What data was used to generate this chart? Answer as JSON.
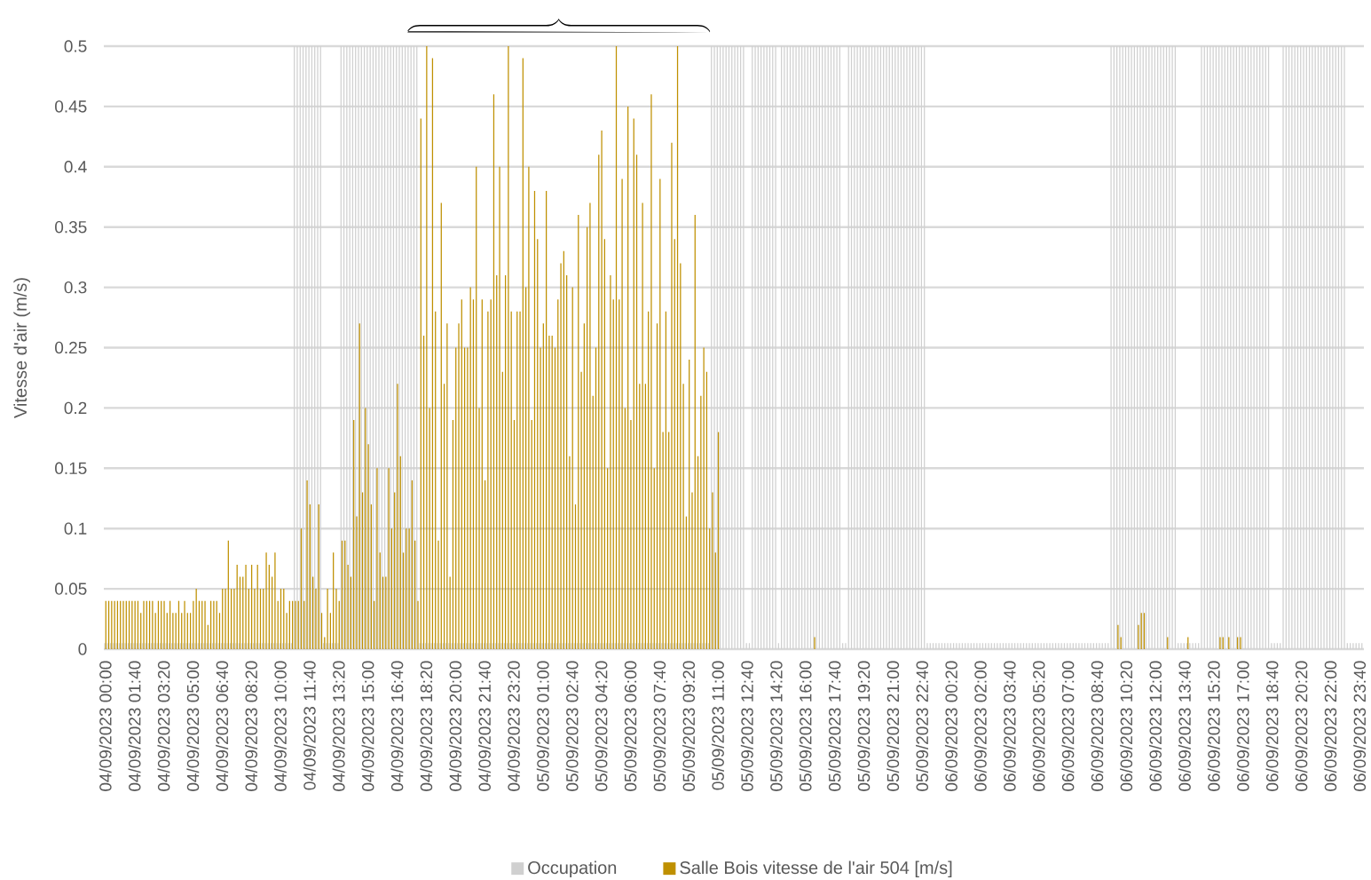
{
  "chart_data": {
    "type": "bar",
    "ylabel": "Vitesse d'air (m/s)",
    "categories": [
      "04/09/2023 00:00",
      null,
      null,
      null,
      null,
      null,
      null,
      null,
      null,
      null,
      "04/09/2023 01:40",
      null,
      null,
      null,
      null,
      null,
      null,
      null,
      null,
      null,
      "04/09/2023 03:20",
      null,
      null,
      null,
      null,
      null,
      null,
      null,
      null,
      null,
      "04/09/2023 05:00",
      null,
      null,
      null,
      null,
      null,
      null,
      null,
      null,
      null,
      "04/09/2023 06:40",
      null,
      null,
      null,
      null,
      null,
      null,
      null,
      null,
      null,
      "04/09/2023 08:20",
      null,
      null,
      null,
      null,
      null,
      null,
      null,
      null,
      null,
      "04/09/2023 10:00",
      null,
      null,
      null,
      null,
      null,
      null,
      null,
      null,
      null,
      "04/09/2023 11:40",
      null,
      null,
      null,
      null,
      null,
      null,
      null,
      null,
      null,
      "04/09/2023 13:20",
      null,
      null,
      null,
      null,
      null,
      null,
      null,
      null,
      null,
      "04/09/2023 15:00",
      null,
      null,
      null,
      null,
      null,
      null,
      null,
      null,
      null,
      "04/09/2023 16:40",
      null,
      null,
      null,
      null,
      null,
      null,
      null,
      null,
      null,
      "04/09/2023 18:20",
      null,
      null,
      null,
      null,
      null,
      null,
      null,
      null,
      null,
      "04/09/2023 20:00",
      null,
      null,
      null,
      null,
      null,
      null,
      null,
      null,
      null,
      "04/09/2023 21:40",
      null,
      null,
      null,
      null,
      null,
      null,
      null,
      null,
      null,
      "04/09/2023 23:20",
      null,
      null,
      null,
      null,
      null,
      null,
      null,
      null,
      null,
      "05/09/2023 01:00",
      null,
      null,
      null,
      null,
      null,
      null,
      null,
      null,
      null,
      "05/09/2023 02:40",
      null,
      null,
      null,
      null,
      null,
      null,
      null,
      null,
      null,
      "05/09/2023 04:20",
      null,
      null,
      null,
      null,
      null,
      null,
      null,
      null,
      null,
      "05/09/2023 06:00",
      null,
      null,
      null,
      null,
      null,
      null,
      null,
      null,
      null,
      "05/09/2023 07:40",
      null,
      null,
      null,
      null,
      null,
      null,
      null,
      null,
      null,
      "05/09/2023 09:20",
      null,
      null,
      null,
      null,
      null,
      null,
      null,
      null,
      null,
      "05/09/2023 11:00",
      null,
      null,
      null,
      null,
      null,
      null,
      null,
      null,
      null,
      "05/09/2023 12:40",
      null,
      null,
      null,
      null,
      null,
      null,
      null,
      null,
      null,
      "05/09/2023 14:20",
      null,
      null,
      null,
      null,
      null,
      null,
      null,
      null,
      null,
      "05/09/2023 16:00",
      null,
      null,
      null,
      null,
      null,
      null,
      null,
      null,
      null,
      "05/09/2023 17:40",
      null,
      null,
      null,
      null,
      null,
      null,
      null,
      null,
      null,
      "05/09/2023 19:20",
      null,
      null,
      null,
      null,
      null,
      null,
      null,
      null,
      null,
      "05/09/2023 21:00",
      null,
      null,
      null,
      null,
      null,
      null,
      null,
      null,
      null,
      "05/09/2023 22:40",
      null,
      null,
      null,
      null,
      null,
      null,
      null,
      null,
      null,
      "06/09/2023 00:20",
      null,
      null,
      null,
      null,
      null,
      null,
      null,
      null,
      null,
      "06/09/2023 02:00",
      null,
      null,
      null,
      null,
      null,
      null,
      null,
      null,
      null,
      "06/09/2023 03:40",
      null,
      null,
      null,
      null,
      null,
      null,
      null,
      null,
      null,
      "06/09/2023 05:20",
      null,
      null,
      null,
      null,
      null,
      null,
      null,
      null,
      null,
      "06/09/2023 07:00",
      null,
      null,
      null,
      null,
      null,
      null,
      null,
      null,
      null,
      "06/09/2023 08:40",
      null,
      null,
      null,
      null,
      null,
      null,
      null,
      null,
      null,
      "06/09/2023 10:20",
      null,
      null,
      null,
      null,
      null,
      null,
      null,
      null,
      null,
      "06/09/2023 12:00",
      null,
      null,
      null,
      null,
      null,
      null,
      null,
      null,
      null,
      "06/09/2023 13:40",
      null,
      null,
      null,
      null,
      null,
      null,
      null,
      null,
      null,
      "06/09/2023 15:20",
      null,
      null,
      null,
      null,
      null,
      null,
      null,
      null,
      null,
      "06/09/2023 17:00",
      null,
      null,
      null,
      null,
      null,
      null,
      null,
      null,
      null,
      "06/09/2023 18:40",
      null,
      null,
      null,
      null,
      null,
      null,
      null,
      null,
      null,
      "06/09/2023 20:20",
      null,
      null,
      null,
      null,
      null,
      null,
      null,
      null,
      null,
      "06/09/2023 22:00",
      null,
      null,
      null,
      null,
      null,
      null,
      null,
      null,
      null,
      "06/09/2023 23:40",
      null
    ],
    "series": [
      {
        "name": "Occupation",
        "color": "#d0d0d0",
        "values": [
          0.005,
          0.005,
          0.005,
          0.005,
          0.005,
          0.005,
          0.005,
          0.005,
          0.005,
          0.005,
          0.005,
          0.005,
          0.005,
          0.005,
          0.005,
          0.005,
          0.005,
          0.005,
          0.005,
          0.005,
          0.005,
          0.005,
          0.005,
          0.005,
          0.005,
          0.005,
          0.005,
          0.005,
          0.005,
          0.005,
          0.005,
          0.005,
          0.005,
          0.005,
          0.005,
          0.005,
          0.005,
          0.005,
          0.005,
          0.005,
          0.005,
          0.005,
          0.005,
          0.005,
          0.005,
          0.005,
          0.005,
          0.005,
          0.005,
          0.005,
          0.005,
          0.005,
          0.005,
          0.005,
          0.005,
          0.005,
          0.005,
          0.005,
          0.005,
          0.005,
          0.005,
          0.005,
          0.005,
          0.005,
          0.005,
          0.5,
          0.5,
          0.5,
          0.5,
          0.5,
          0.5,
          0.5,
          0.5,
          0.5,
          0.5,
          0.005,
          0.005,
          0.005,
          0.005,
          0.005,
          0.005,
          0.5,
          0.5,
          0.5,
          0.5,
          0.5,
          0.5,
          0.5,
          0.5,
          0.5,
          0.5,
          0.5,
          0.5,
          0.5,
          0.5,
          0.5,
          0.5,
          0.5,
          0.5,
          0.5,
          0.5,
          0.5,
          0.5,
          0.5,
          0.5,
          0.5,
          0.5,
          0.5,
          0.005,
          0.005,
          0.005,
          0.005,
          0.005,
          0.005,
          0.005,
          0.005,
          0.005,
          0.005,
          0.005,
          0.005,
          0.005,
          0.005,
          0.005,
          0.005,
          0.005,
          0.005,
          0.005,
          0.005,
          0.005,
          0.005,
          0.005,
          0.005,
          0.005,
          0.005,
          0.005,
          0.005,
          0.005,
          0.005,
          0.005,
          0.005,
          0.005,
          0.005,
          0.005,
          0.005,
          0.005,
          0.005,
          0.005,
          0.005,
          0.005,
          0.005,
          0.005,
          0.005,
          0.005,
          0.005,
          0.005,
          0.005,
          0.005,
          0.005,
          0.005,
          0.005,
          0.005,
          0.005,
          0.005,
          0.005,
          0.005,
          0.005,
          0.005,
          0.005,
          0.005,
          0.005,
          0.005,
          0.005,
          0.005,
          0.005,
          0.005,
          0.005,
          0.005,
          0.005,
          0.005,
          0.005,
          0.005,
          0.005,
          0.005,
          0.005,
          0.005,
          0.005,
          0.005,
          0.005,
          0.005,
          0.005,
          0.005,
          0.005,
          0.005,
          0.005,
          0.005,
          0.005,
          0.005,
          0.005,
          0.005,
          0.005,
          0.005,
          0.005,
          0.005,
          0.005,
          0.005,
          0.005,
          0.005,
          0.005,
          0.5,
          0.5,
          0.5,
          0.5,
          0.5,
          0.5,
          0.5,
          0.5,
          0.5,
          0.5,
          0.5,
          0.5,
          0.005,
          0.005,
          0.5,
          0.5,
          0.5,
          0.5,
          0.5,
          0.5,
          0.5,
          0.5,
          0.5,
          0.005,
          0.5,
          0.5,
          0.5,
          0.5,
          0.5,
          0.5,
          0.5,
          0.5,
          0.5,
          0.5,
          0.5,
          0.5,
          0.5,
          0.5,
          0.5,
          0.5,
          0.5,
          0.5,
          0.5,
          0.5,
          0.5,
          0.005,
          0.005,
          0.5,
          0.5,
          0.5,
          0.5,
          0.5,
          0.5,
          0.5,
          0.5,
          0.5,
          0.5,
          0.5,
          0.5,
          0.5,
          0.5,
          0.5,
          0.5,
          0.5,
          0.5,
          0.5,
          0.5,
          0.5,
          0.5,
          0.5,
          0.5,
          0.5,
          0.5,
          0.5,
          0.005,
          0.005,
          0.005,
          0.005,
          0.005,
          0.005,
          0.005,
          0.005,
          0.005,
          0.005,
          0.005,
          0.005,
          0.005,
          0.005,
          0.005,
          0.005,
          0.005,
          0.005,
          0.005,
          0.005,
          0.005,
          0.005,
          0.005,
          0.005,
          0.005,
          0.005,
          0.005,
          0.005,
          0.005,
          0.005,
          0.005,
          0.005,
          0.005,
          0.005,
          0.005,
          0.005,
          0.005,
          0.005,
          0.005,
          0.005,
          0.005,
          0.005,
          0.005,
          0.005,
          0.005,
          0.005,
          0.005,
          0.005,
          0.005,
          0.005,
          0.005,
          0.005,
          0.005,
          0.005,
          0.005,
          0.005,
          0.005,
          0.005,
          0.005,
          0.005,
          0.005,
          0.005,
          0.005,
          0.5,
          0.5,
          0.5,
          0.5,
          0.5,
          0.5,
          0.5,
          0.5,
          0.5,
          0.5,
          0.5,
          0.5,
          0.5,
          0.5,
          0.5,
          0.5,
          0.5,
          0.5,
          0.5,
          0.5,
          0.5,
          0.5,
          0.5,
          0.005,
          0.005,
          0.005,
          0.005,
          0.005,
          0.005,
          0.005,
          0.005,
          0.5,
          0.5,
          0.5,
          0.5,
          0.5,
          0.5,
          0.5,
          0.5,
          0.5,
          0.5,
          0.5,
          0.5,
          0.5,
          0.5,
          0.5,
          0.5,
          0.5,
          0.5,
          0.5,
          0.5,
          0.5,
          0.5,
          0.5,
          0.5,
          0.005,
          0.005,
          0.005,
          0.005,
          0.5,
          0.5,
          0.5,
          0.5,
          0.5,
          0.5,
          0.5,
          0.5,
          0.5,
          0.5,
          0.5,
          0.5,
          0.5,
          0.5,
          0.5,
          0.5,
          0.5,
          0.5,
          0.5,
          0.5,
          0.5,
          0.5,
          0.005,
          0.005,
          0.005,
          0.005,
          0.005,
          0.005
        ]
      },
      {
        "name": "Salle Bois vitesse de l'air 504 [m/s]",
        "color": "#bf9000",
        "values": [
          0.04,
          0.04,
          0.04,
          0.04,
          0.04,
          0.04,
          0.04,
          0.04,
          0.04,
          0.04,
          0.04,
          0.04,
          0.03,
          0.04,
          0.04,
          0.04,
          0.04,
          0.03,
          0.04,
          0.04,
          0.04,
          0.03,
          0.04,
          0.03,
          0.03,
          0.04,
          0.03,
          0.04,
          0.03,
          0.03,
          0.04,
          0.05,
          0.04,
          0.04,
          0.04,
          0.02,
          0.04,
          0.04,
          0.04,
          0.03,
          0.05,
          0.05,
          0.09,
          0.05,
          0.05,
          0.07,
          0.06,
          0.06,
          0.07,
          0.05,
          0.07,
          0.05,
          0.07,
          0.05,
          0.05,
          0.08,
          0.07,
          0.06,
          0.08,
          0.04,
          0.05,
          0.05,
          0.03,
          0.04,
          0.04,
          0.04,
          0.04,
          0.1,
          0.04,
          0.14,
          0.12,
          0.06,
          0.05,
          0.12,
          0.03,
          0.01,
          0.05,
          0.03,
          0.08,
          0.05,
          0.04,
          0.09,
          0.09,
          0.07,
          0.06,
          0.19,
          0.11,
          0.27,
          0.13,
          0.2,
          0.17,
          0.12,
          0.04,
          0.15,
          0.08,
          0.06,
          0.06,
          0.15,
          0.1,
          0.13,
          0.22,
          0.16,
          0.08,
          0.1,
          0.1,
          0.14,
          0.09,
          0.04,
          0.44,
          0.26,
          0.5,
          0.2,
          0.49,
          0.28,
          0.09,
          0.37,
          0.22,
          0.27,
          0.06,
          0.19,
          0.25,
          0.27,
          0.29,
          0.25,
          0.25,
          0.3,
          0.29,
          0.4,
          0.2,
          0.29,
          0.14,
          0.28,
          0.29,
          0.46,
          0.31,
          0.4,
          0.23,
          0.31,
          0.5,
          0.28,
          0.19,
          0.28,
          0.28,
          0.49,
          0.3,
          0.4,
          0.19,
          0.38,
          0.34,
          0.25,
          0.27,
          0.38,
          0.26,
          0.26,
          0.25,
          0.29,
          0.32,
          0.33,
          0.31,
          0.16,
          0.3,
          0.12,
          0.36,
          0.23,
          0.27,
          0.35,
          0.37,
          0.21,
          0.25,
          0.41,
          0.43,
          0.34,
          0.15,
          0.31,
          0.29,
          0.5,
          0.29,
          0.39,
          0.2,
          0.45,
          0.19,
          0.44,
          0.41,
          0.22,
          0.37,
          0.22,
          0.28,
          0.46,
          0.15,
          0.27,
          0.39,
          0.18,
          0.28,
          0.18,
          0.42,
          0.34,
          0.5,
          0.32,
          0.22,
          0.11,
          0.24,
          0.13,
          0.36,
          0.16,
          0.21,
          0.25,
          0.23,
          0.1,
          0.13,
          0.08,
          0.18,
          0,
          0,
          0,
          0,
          0,
          0,
          0,
          0,
          0,
          0,
          0,
          0,
          0,
          0,
          0,
          0,
          0,
          0,
          0,
          0,
          0,
          0,
          0,
          0,
          0,
          0,
          0,
          0,
          0,
          0,
          0,
          0,
          0.01,
          0,
          0,
          0,
          0,
          0,
          0,
          0,
          0,
          0,
          0,
          0,
          0,
          0,
          0,
          0,
          0,
          0,
          0,
          0,
          0,
          0,
          0,
          0,
          0,
          0,
          0,
          0,
          0,
          0,
          0,
          0,
          0,
          0,
          0,
          0,
          0,
          0,
          0,
          0,
          0,
          0,
          0,
          0,
          0,
          0,
          0,
          0,
          0,
          0,
          0,
          0,
          0,
          0,
          0,
          0,
          0,
          0,
          0,
          0,
          0,
          0,
          0,
          0,
          0,
          0,
          0,
          0,
          0,
          0,
          0,
          0,
          0,
          0,
          0,
          0,
          0,
          0,
          0,
          0,
          0,
          0,
          0,
          0,
          0,
          0,
          0,
          0,
          0,
          0,
          0,
          0,
          0,
          0,
          0,
          0,
          0,
          0,
          0,
          0,
          0,
          0,
          0,
          0,
          0.02,
          0.01,
          0,
          0,
          0,
          0,
          0,
          0.02,
          0.03,
          0.03,
          0,
          0,
          0,
          0,
          0,
          0,
          0,
          0.01,
          0,
          0,
          0,
          0,
          0,
          0,
          0.01,
          0,
          0,
          0,
          0,
          0,
          0,
          0,
          0,
          0,
          0,
          0.01,
          0.01,
          0,
          0.01,
          0,
          0,
          0.01,
          0.01,
          0,
          0,
          0,
          0,
          0,
          0,
          0,
          0,
          0,
          0,
          0,
          0,
          0,
          0,
          0,
          0,
          0,
          0,
          0,
          0,
          0,
          0,
          0,
          0,
          0,
          0,
          0,
          0,
          0,
          0,
          0,
          0,
          0,
          0,
          0,
          0,
          0,
          0,
          0,
          0,
          0,
          0
        ]
      }
    ],
    "ylim": [
      0,
      0.5
    ],
    "yticks": [
      0,
      0.05,
      0.1,
      0.15,
      0.2,
      0.25,
      0.3,
      0.35,
      0.4,
      0.45,
      0.5
    ],
    "grid": "y",
    "legend": "bottom"
  }
}
